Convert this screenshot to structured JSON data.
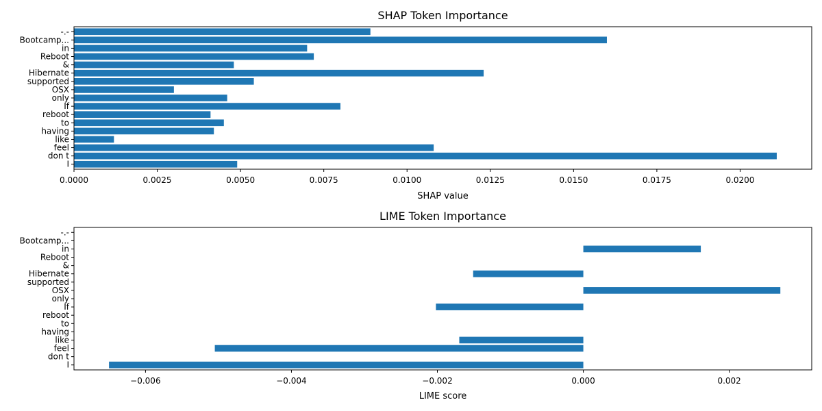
{
  "chart_data": [
    {
      "type": "bar",
      "orientation": "horizontal",
      "title": "SHAP Token Importance",
      "xlabel": "SHAP value",
      "ylabel": "",
      "xlim": [
        0,
        0.02215
      ],
      "xticks": [
        0.0,
        0.0025,
        0.005,
        0.0075,
        0.01,
        0.0125,
        0.015,
        0.0175,
        0.02
      ],
      "xtick_labels": [
        "0.0000",
        "0.0025",
        "0.0050",
        "0.0075",
        "0.0100",
        "0.0125",
        "0.0150",
        "0.0175",
        "0.0200"
      ],
      "grid": false,
      "categories": [
        "I",
        "don t",
        "feel",
        "like",
        "having",
        "to",
        "reboot",
        "If",
        "only",
        "OSX",
        "supported",
        "Hibernate",
        "&",
        "Reboot",
        "in",
        "Bootcamp...",
        "-.-"
      ],
      "values": [
        0.0049,
        0.0211,
        0.0108,
        0.0012,
        0.0042,
        0.0045,
        0.0041,
        0.008,
        0.0046,
        0.003,
        0.0054,
        0.0123,
        0.0048,
        0.0072,
        0.007,
        0.016,
        0.0089
      ]
    },
    {
      "type": "bar",
      "orientation": "horizontal",
      "title": "LIME Token Importance",
      "xlabel": "LIME score",
      "ylabel": "",
      "xlim": [
        -0.00698,
        0.00313
      ],
      "xticks": [
        -0.006,
        -0.004,
        -0.002,
        0.0,
        0.002
      ],
      "xtick_labels": [
        "−0.006",
        "−0.004",
        "−0.002",
        "0.000",
        "0.002"
      ],
      "grid": false,
      "categories": [
        "I",
        "don t",
        "feel",
        "like",
        "having",
        "to",
        "reboot",
        "If",
        "only",
        "OSX",
        "supported",
        "Hibernate",
        "&",
        "Reboot",
        "in",
        "Bootcamp...",
        "-.-"
      ],
      "values": [
        -0.0065,
        0,
        -0.00505,
        -0.0017,
        0,
        0,
        0,
        -0.00202,
        0,
        0.0027,
        0,
        -0.00151,
        0,
        0,
        0.00161,
        0,
        0
      ]
    }
  ]
}
